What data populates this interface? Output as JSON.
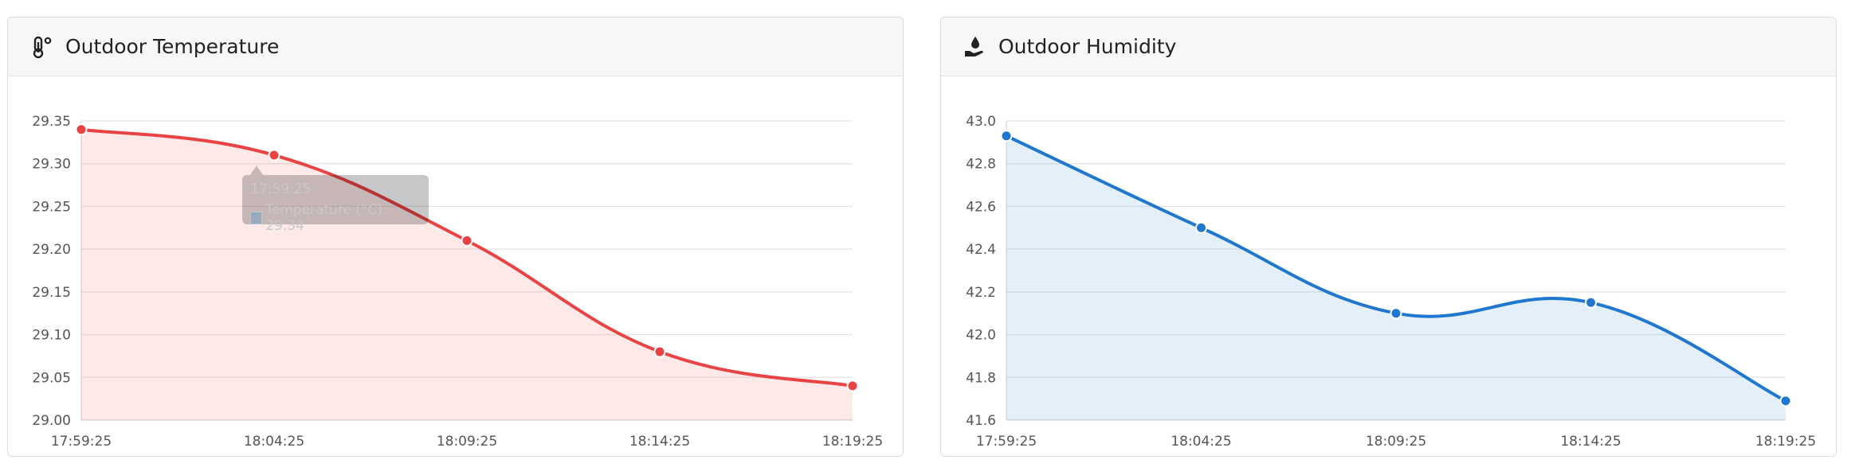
{
  "cards": [
    {
      "title": "Outdoor Temperature",
      "icon": "thermometer-icon",
      "color": "#e94343",
      "fill": "rgba(247,120,120,0.16)",
      "tooltip": {
        "title": "17:59:25",
        "label": "Temperature (°C): 29.34"
      }
    },
    {
      "title": "Outdoor Humidity",
      "icon": "hand-drop-icon",
      "color": "#1f77d0",
      "fill": "rgba(100,170,230,0.18)"
    }
  ],
  "chart_data": [
    {
      "type": "line",
      "x": [
        "17:59:25",
        "18:04:25",
        "18:09:25",
        "18:14:25",
        "18:19:25"
      ],
      "series": [
        {
          "values": [
            29.34,
            29.31,
            29.21,
            29.08,
            29.04
          ]
        }
      ],
      "ylim": [
        29.0,
        29.35
      ],
      "yticks": [
        "29.35",
        "29.30",
        "29.25",
        "29.20",
        "29.15",
        "29.10",
        "29.05",
        "29.00"
      ],
      "grid": true
    },
    {
      "type": "line",
      "x": [
        "17:59:25",
        "18:04:25",
        "18:09:25",
        "18:14:25",
        "18:19:25"
      ],
      "series": [
        {
          "values": [
            42.93,
            42.5,
            42.1,
            42.15,
            41.69
          ]
        }
      ],
      "ylim": [
        41.6,
        43.0
      ],
      "yticks": [
        "43.0",
        "42.8",
        "42.6",
        "42.4",
        "42.2",
        "42.0",
        "41.8",
        "41.6"
      ],
      "grid": true
    }
  ]
}
